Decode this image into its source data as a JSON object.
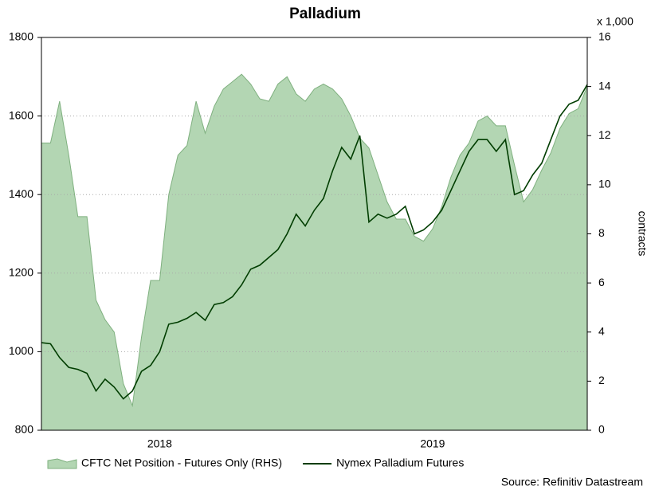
{
  "chart_data": {
    "type": "line",
    "title": "Palladium",
    "y2_unit": "x 1,000",
    "y2_label": "contracts",
    "source": "Source: Refinitiv Datastream",
    "categories": [
      null,
      null,
      null,
      null,
      null,
      null,
      null,
      null,
      null,
      null,
      null,
      null,
      null,
      "2018",
      null,
      null,
      null,
      null,
      null,
      null,
      null,
      null,
      null,
      null,
      null,
      null,
      null,
      null,
      null,
      null,
      null,
      null,
      null,
      null,
      null,
      null,
      null,
      null,
      null,
      null,
      null,
      null,
      null,
      "2019",
      null,
      null,
      null,
      null,
      null,
      null,
      null,
      null,
      null,
      null,
      null,
      null,
      null,
      null,
      null,
      null,
      null
    ],
    "ylim": [
      800,
      1800
    ],
    "yticks": [
      800,
      1000,
      1200,
      1400,
      1600,
      1800
    ],
    "y2lim": [
      0,
      16
    ],
    "y2ticks": [
      0,
      2,
      4,
      6,
      8,
      10,
      12,
      14,
      16
    ],
    "grid": true,
    "series": [
      {
        "name": "CFTC Net Position - Futures Only (RHS)",
        "type": "area",
        "axis": "y2",
        "color": "#b3d6b3",
        "values": [
          11.7,
          11.7,
          13.4,
          11.2,
          8.7,
          8.7,
          5.3,
          4.5,
          4.0,
          1.9,
          1.0,
          3.8,
          6.1,
          6.1,
          9.6,
          11.2,
          11.6,
          13.4,
          12.1,
          13.2,
          13.9,
          14.2,
          14.5,
          14.1,
          13.5,
          13.4,
          14.1,
          14.4,
          13.7,
          13.4,
          13.9,
          14.1,
          13.9,
          13.5,
          12.8,
          11.9,
          11.5,
          10.4,
          9.3,
          8.6,
          8.6,
          7.9,
          7.7,
          8.2,
          9.1,
          10.3,
          11.2,
          11.7,
          12.6,
          12.8,
          12.4,
          12.4,
          10.8,
          9.3,
          9.8,
          10.6,
          11.3,
          12.3,
          12.9,
          13.1,
          14.0
        ]
      },
      {
        "name": "Nymex Palladium Futures",
        "type": "line",
        "color": "#003d00",
        "values": [
          1023,
          1020,
          985,
          960,
          955,
          945,
          900,
          930,
          910,
          880,
          900,
          950,
          965,
          1000,
          1070,
          1075,
          1085,
          1100,
          1080,
          1120,
          1125,
          1140,
          1170,
          1210,
          1220,
          1240,
          1260,
          1300,
          1350,
          1320,
          1360,
          1390,
          1460,
          1520,
          1490,
          1550,
          1330,
          1350,
          1340,
          1350,
          1370,
          1300,
          1310,
          1330,
          1360,
          1410,
          1460,
          1510,
          1540,
          1540,
          1510,
          1540,
          1400,
          1410,
          1450,
          1480,
          1540,
          1600,
          1630,
          1640,
          1680
        ]
      }
    ]
  }
}
